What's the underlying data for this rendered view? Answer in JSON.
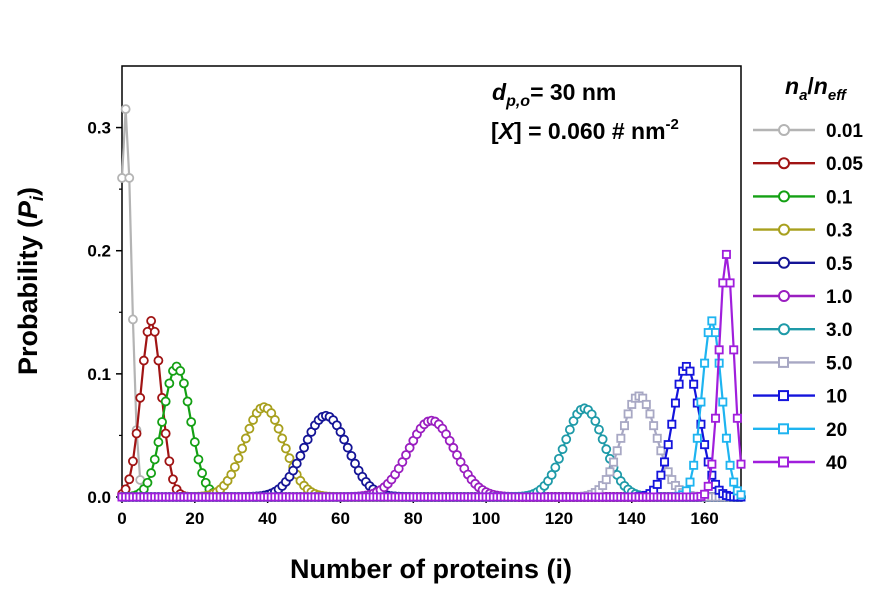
{
  "chart_data": {
    "type": "line",
    "xlabel_main": "Number of proteins (i)",
    "ylabel_prefix": "Probability (",
    "ylabel_var": "P",
    "ylabel_sub": "i",
    "ylabel_suffix": ")",
    "xlim": [
      0,
      170
    ],
    "ylim": [
      0,
      0.35
    ],
    "xticks": [
      "0",
      "20",
      "40",
      "60",
      "80",
      "100",
      "120",
      "140",
      "160"
    ],
    "yticks": [
      "0.0",
      "0.1",
      "0.2",
      "0.3"
    ],
    "annotation_line1": {
      "var": "d",
      "sub": "p,o",
      "rest": "= 30 nm"
    },
    "annotation_line2": {
      "open": "[",
      "var": "X",
      "close": "] = 0.060 # nm",
      "sup": "-2"
    },
    "legend_title": {
      "var1": "n",
      "sub1": "a",
      "slash": "/",
      "var2": "n",
      "sub2": "eff"
    },
    "legend_placement": "right, outside plot",
    "series": [
      {
        "name": "0.01",
        "color": "#b4b4b4",
        "marker": "circle",
        "peak_x": 1,
        "peak_y": 0.315,
        "sigma": 1.6
      },
      {
        "name": "0.05",
        "color": "#a01414",
        "marker": "circle",
        "peak_x": 8,
        "peak_y": 0.143,
        "sigma": 2.8
      },
      {
        "name": "0.1",
        "color": "#14a014",
        "marker": "circle",
        "peak_x": 15,
        "peak_y": 0.106,
        "sigma": 3.8
      },
      {
        "name": "0.3",
        "color": "#a8a01e",
        "marker": "circle",
        "peak_x": 39,
        "peak_y": 0.073,
        "sigma": 5.4
      },
      {
        "name": "0.5",
        "color": "#141496",
        "marker": "circle",
        "peak_x": 56,
        "peak_y": 0.066,
        "sigma": 6.0
      },
      {
        "name": "1.0",
        "color": "#9a1ec0",
        "marker": "circle",
        "peak_x": 85,
        "peak_y": 0.062,
        "sigma": 6.4
      },
      {
        "name": "3.0",
        "color": "#1e9aa8",
        "marker": "circle",
        "peak_x": 127,
        "peak_y": 0.072,
        "sigma": 5.4
      },
      {
        "name": "5.0",
        "color": "#a8a8c4",
        "marker": "square",
        "peak_x": 142,
        "peak_y": 0.082,
        "sigma": 4.8
      },
      {
        "name": "10",
        "color": "#1414dc",
        "marker": "square",
        "peak_x": 155,
        "peak_y": 0.106,
        "sigma": 3.7
      },
      {
        "name": "20",
        "color": "#1eb4f0",
        "marker": "square",
        "peak_x": 162,
        "peak_y": 0.143,
        "sigma": 2.7
      },
      {
        "name": "40",
        "color": "#a01edc",
        "marker": "square",
        "peak_x": 166,
        "peak_y": 0.197,
        "sigma": 2.0
      }
    ]
  }
}
